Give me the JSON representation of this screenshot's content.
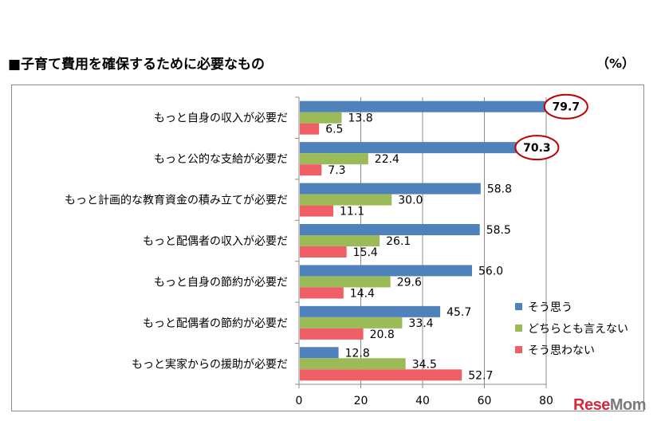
{
  "header": {
    "title": "■子育て費用を確保するために必要なもの",
    "unit": "（%）"
  },
  "logo": {
    "text_a": "Rese",
    "text_b": "Mom"
  },
  "chart_data": {
    "type": "bar",
    "orientation": "horizontal",
    "categories": [
      "もっと自身の収入が必要だ",
      "もっと公的な支給が必要だ",
      "もっと計画的な教育資金の積み立てが必要だ",
      "もっと配偶者の収入が必要だ",
      "もっと自身の節約が必要だ",
      "もっと配偶者の節約が必要だ",
      "もっと実家からの援助が必要だ"
    ],
    "series": [
      {
        "name": "そう思う",
        "color": "#4f81bd",
        "values": [
          79.7,
          70.3,
          58.8,
          58.5,
          56.0,
          45.7,
          12.8
        ],
        "labels": [
          "79.7",
          "70.3",
          "58.8",
          "58.5",
          "56.0",
          "45.7",
          "12.8"
        ]
      },
      {
        "name": "どちらとも言えない",
        "color": "#9bbb59",
        "values": [
          13.8,
          22.4,
          30.0,
          26.1,
          29.6,
          33.4,
          34.5
        ],
        "labels": [
          "13.8",
          "22.4",
          "30.0",
          "26.1",
          "29.6",
          "33.4",
          "34.5"
        ]
      },
      {
        "name": "そう思わない",
        "color": "#f15f66",
        "values": [
          6.5,
          7.3,
          11.1,
          15.4,
          14.4,
          20.8,
          52.7
        ],
        "labels": [
          "6.5",
          "7.3",
          "11.1",
          "15.4",
          "14.4",
          "20.8",
          "52.7"
        ]
      }
    ],
    "xlim": [
      0,
      80
    ],
    "xticks": [
      "0",
      "20",
      "40",
      "60",
      "80"
    ],
    "grid": true,
    "legend": "right",
    "highlighted": [
      "79.7",
      "70.3"
    ],
    "highlight_color": "#c00000"
  }
}
